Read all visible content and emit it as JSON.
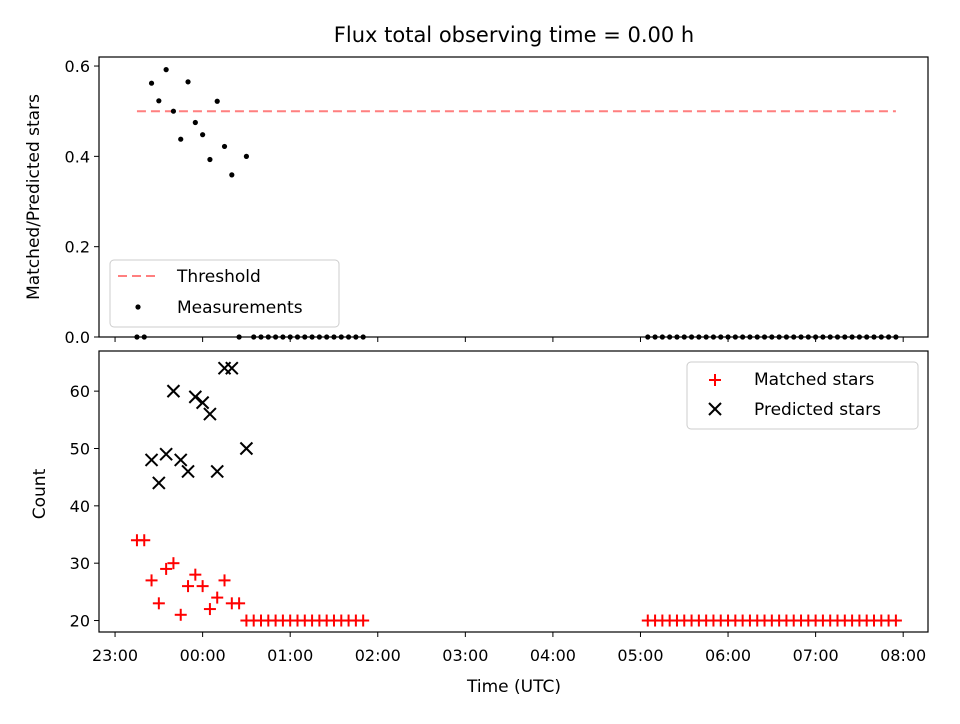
{
  "chart_data": [
    {
      "type": "scatter",
      "title": "Flux total observing time = 0.00 h",
      "ylabel": "Matched/Predicted stars",
      "xlabel": "",
      "xlim": [
        "22:49",
        "08:17"
      ],
      "ylim": [
        0,
        0.62
      ],
      "yticks": [
        "0.0",
        "0.2",
        "0.4",
        "0.6"
      ],
      "grid": false,
      "legend": {
        "placement": "lower-left"
      },
      "threshold": {
        "name": "Threshold",
        "value": 0.5,
        "x": [
          "23:15",
          "07:55"
        ],
        "color": "#ff7f7f",
        "style": "dashed"
      },
      "series": [
        {
          "name": "Measurements",
          "color": "#000000",
          "marker": "dot",
          "points": [
            {
              "x": "23:15",
              "y": 0
            },
            {
              "x": "23:20",
              "y": 0
            },
            {
              "x": "23:25",
              "y": 0.562
            },
            {
              "x": "23:30",
              "y": 0.523
            },
            {
              "x": "23:35",
              "y": 0.592
            },
            {
              "x": "23:40",
              "y": 0.5
            },
            {
              "x": "23:45",
              "y": 0.438
            },
            {
              "x": "23:50",
              "y": 0.565
            },
            {
              "x": "23:55",
              "y": 0.475
            },
            {
              "x": "00:00",
              "y": 0.448
            },
            {
              "x": "00:05",
              "y": 0.393
            },
            {
              "x": "00:10",
              "y": 0.522
            },
            {
              "x": "00:15",
              "y": 0.422
            },
            {
              "x": "00:20",
              "y": 0.359
            },
            {
              "x": "00:25",
              "y": 0
            },
            {
              "x": "00:30",
              "y": 0.4
            },
            {
              "x": "00:35",
              "y": 0
            },
            {
              "x": "00:40",
              "y": 0
            },
            {
              "x": "00:45",
              "y": 0
            },
            {
              "x": "00:50",
              "y": 0
            },
            {
              "x": "00:55",
              "y": 0
            },
            {
              "x": "01:00",
              "y": 0
            },
            {
              "x": "01:05",
              "y": 0
            },
            {
              "x": "01:10",
              "y": 0
            },
            {
              "x": "01:15",
              "y": 0
            },
            {
              "x": "01:20",
              "y": 0
            },
            {
              "x": "01:25",
              "y": 0
            },
            {
              "x": "01:30",
              "y": 0
            },
            {
              "x": "01:35",
              "y": 0
            },
            {
              "x": "01:40",
              "y": 0
            },
            {
              "x": "01:45",
              "y": 0
            },
            {
              "x": "01:50",
              "y": 0
            },
            {
              "x": "05:05",
              "y": 0
            },
            {
              "x": "05:10",
              "y": 0
            },
            {
              "x": "05:15",
              "y": 0
            },
            {
              "x": "05:20",
              "y": 0
            },
            {
              "x": "05:25",
              "y": 0
            },
            {
              "x": "05:30",
              "y": 0
            },
            {
              "x": "05:35",
              "y": 0
            },
            {
              "x": "05:40",
              "y": 0
            },
            {
              "x": "05:45",
              "y": 0
            },
            {
              "x": "05:50",
              "y": 0
            },
            {
              "x": "05:55",
              "y": 0
            },
            {
              "x": "06:00",
              "y": 0
            },
            {
              "x": "06:05",
              "y": 0
            },
            {
              "x": "06:10",
              "y": 0
            },
            {
              "x": "06:15",
              "y": 0
            },
            {
              "x": "06:20",
              "y": 0
            },
            {
              "x": "06:25",
              "y": 0
            },
            {
              "x": "06:30",
              "y": 0
            },
            {
              "x": "06:35",
              "y": 0
            },
            {
              "x": "06:40",
              "y": 0
            },
            {
              "x": "06:45",
              "y": 0
            },
            {
              "x": "06:50",
              "y": 0
            },
            {
              "x": "06:55",
              "y": 0
            },
            {
              "x": "07:00",
              "y": 0
            },
            {
              "x": "07:05",
              "y": 0
            },
            {
              "x": "07:10",
              "y": 0
            },
            {
              "x": "07:15",
              "y": 0
            },
            {
              "x": "07:20",
              "y": 0
            },
            {
              "x": "07:25",
              "y": 0
            },
            {
              "x": "07:30",
              "y": 0
            },
            {
              "x": "07:35",
              "y": 0
            },
            {
              "x": "07:40",
              "y": 0
            },
            {
              "x": "07:45",
              "y": 0
            },
            {
              "x": "07:50",
              "y": 0
            },
            {
              "x": "07:55",
              "y": 0
            }
          ]
        }
      ]
    },
    {
      "type": "scatter",
      "title": "",
      "ylabel": "Count",
      "xlabel": "Time (UTC)",
      "xlim": [
        "22:49",
        "08:17"
      ],
      "ylim": [
        18,
        67
      ],
      "yticks": [
        "20",
        "30",
        "40",
        "50",
        "60"
      ],
      "xticks": [
        "23:00",
        "00:00",
        "01:00",
        "02:00",
        "03:00",
        "04:00",
        "05:00",
        "06:00",
        "07:00",
        "08:00"
      ],
      "grid": false,
      "legend": {
        "placement": "top-right"
      },
      "series": [
        {
          "name": "Matched stars",
          "color": "#ff0000",
          "marker": "plus",
          "points": [
            {
              "x": "23:15",
              "y": 34
            },
            {
              "x": "23:20",
              "y": 34
            },
            {
              "x": "23:25",
              "y": 27
            },
            {
              "x": "23:30",
              "y": 23
            },
            {
              "x": "23:35",
              "y": 29
            },
            {
              "x": "23:40",
              "y": 30
            },
            {
              "x": "23:45",
              "y": 21
            },
            {
              "x": "23:50",
              "y": 26
            },
            {
              "x": "23:55",
              "y": 28
            },
            {
              "x": "00:00",
              "y": 26
            },
            {
              "x": "00:05",
              "y": 22
            },
            {
              "x": "00:10",
              "y": 24
            },
            {
              "x": "00:15",
              "y": 27
            },
            {
              "x": "00:20",
              "y": 23
            },
            {
              "x": "00:25",
              "y": 23
            },
            {
              "x": "00:30",
              "y": 20
            },
            {
              "x": "00:35",
              "y": 20
            },
            {
              "x": "00:40",
              "y": 20
            },
            {
              "x": "00:45",
              "y": 20
            },
            {
              "x": "00:50",
              "y": 20
            },
            {
              "x": "00:55",
              "y": 20
            },
            {
              "x": "01:00",
              "y": 20
            },
            {
              "x": "01:05",
              "y": 20
            },
            {
              "x": "01:10",
              "y": 20
            },
            {
              "x": "01:15",
              "y": 20
            },
            {
              "x": "01:20",
              "y": 20
            },
            {
              "x": "01:25",
              "y": 20
            },
            {
              "x": "01:30",
              "y": 20
            },
            {
              "x": "01:35",
              "y": 20
            },
            {
              "x": "01:40",
              "y": 20
            },
            {
              "x": "01:45",
              "y": 20
            },
            {
              "x": "01:50",
              "y": 20
            },
            {
              "x": "05:05",
              "y": 20
            },
            {
              "x": "05:10",
              "y": 20
            },
            {
              "x": "05:15",
              "y": 20
            },
            {
              "x": "05:20",
              "y": 20
            },
            {
              "x": "05:25",
              "y": 20
            },
            {
              "x": "05:30",
              "y": 20
            },
            {
              "x": "05:35",
              "y": 20
            },
            {
              "x": "05:40",
              "y": 20
            },
            {
              "x": "05:45",
              "y": 20
            },
            {
              "x": "05:50",
              "y": 20
            },
            {
              "x": "05:55",
              "y": 20
            },
            {
              "x": "06:00",
              "y": 20
            },
            {
              "x": "06:05",
              "y": 20
            },
            {
              "x": "06:10",
              "y": 20
            },
            {
              "x": "06:15",
              "y": 20
            },
            {
              "x": "06:20",
              "y": 20
            },
            {
              "x": "06:25",
              "y": 20
            },
            {
              "x": "06:30",
              "y": 20
            },
            {
              "x": "06:35",
              "y": 20
            },
            {
              "x": "06:40",
              "y": 20
            },
            {
              "x": "06:45",
              "y": 20
            },
            {
              "x": "06:50",
              "y": 20
            },
            {
              "x": "06:55",
              "y": 20
            },
            {
              "x": "07:00",
              "y": 20
            },
            {
              "x": "07:05",
              "y": 20
            },
            {
              "x": "07:10",
              "y": 20
            },
            {
              "x": "07:15",
              "y": 20
            },
            {
              "x": "07:20",
              "y": 20
            },
            {
              "x": "07:25",
              "y": 20
            },
            {
              "x": "07:30",
              "y": 20
            },
            {
              "x": "07:35",
              "y": 20
            },
            {
              "x": "07:40",
              "y": 20
            },
            {
              "x": "07:45",
              "y": 20
            },
            {
              "x": "07:50",
              "y": 20
            },
            {
              "x": "07:55",
              "y": 20
            }
          ]
        },
        {
          "name": "Predicted stars",
          "color": "#000000",
          "marker": "x",
          "points": [
            {
              "x": "23:25",
              "y": 48
            },
            {
              "x": "23:30",
              "y": 44
            },
            {
              "x": "23:35",
              "y": 49
            },
            {
              "x": "23:40",
              "y": 60
            },
            {
              "x": "23:45",
              "y": 48
            },
            {
              "x": "23:50",
              "y": 46
            },
            {
              "x": "23:55",
              "y": 59
            },
            {
              "x": "00:00",
              "y": 58
            },
            {
              "x": "00:05",
              "y": 56
            },
            {
              "x": "00:10",
              "y": 46
            },
            {
              "x": "00:15",
              "y": 64
            },
            {
              "x": "00:20",
              "y": 64
            },
            {
              "x": "00:30",
              "y": 50
            }
          ]
        }
      ]
    }
  ]
}
